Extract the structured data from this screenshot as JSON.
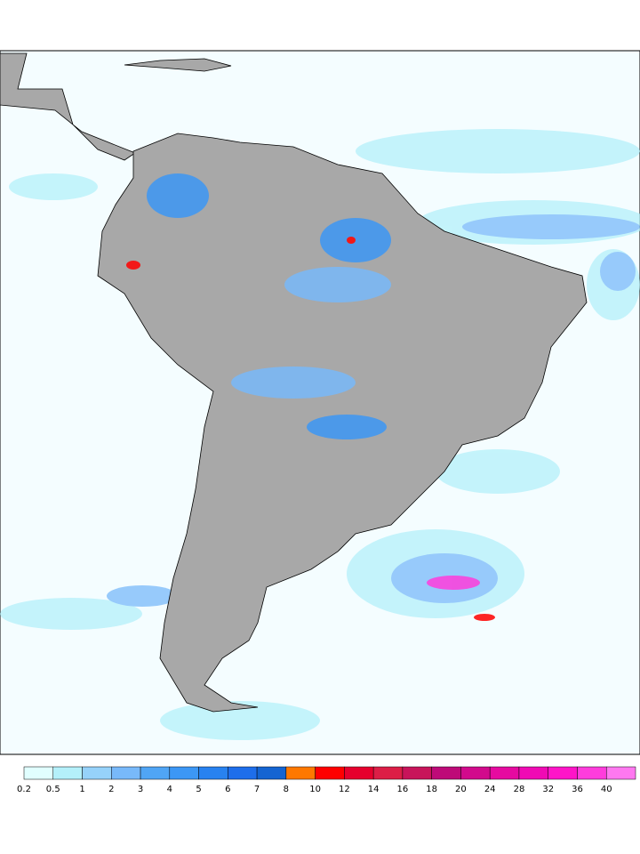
{
  "legend": {
    "levels": [
      0.2,
      0.5,
      1,
      2,
      3,
      4,
      5,
      6,
      7,
      8,
      10,
      12,
      14,
      16,
      18,
      20,
      24,
      28,
      32,
      36,
      40
    ],
    "colors": [
      "#e1ffff",
      "#b4f0fa",
      "#96d2fa",
      "#78b9fa",
      "#50a5f5",
      "#3c97f5",
      "#2882f0",
      "#1e6eeb",
      "#1464d2",
      "#ff7800",
      "#ff0000",
      "#e6002d",
      "#dc1e46",
      "#c8145a",
      "#be0a78",
      "#d20a8c",
      "#e60aa0",
      "#f00ab4",
      "#ff14c8",
      "#ff3cdc",
      "#ff78f0"
    ]
  }
}
